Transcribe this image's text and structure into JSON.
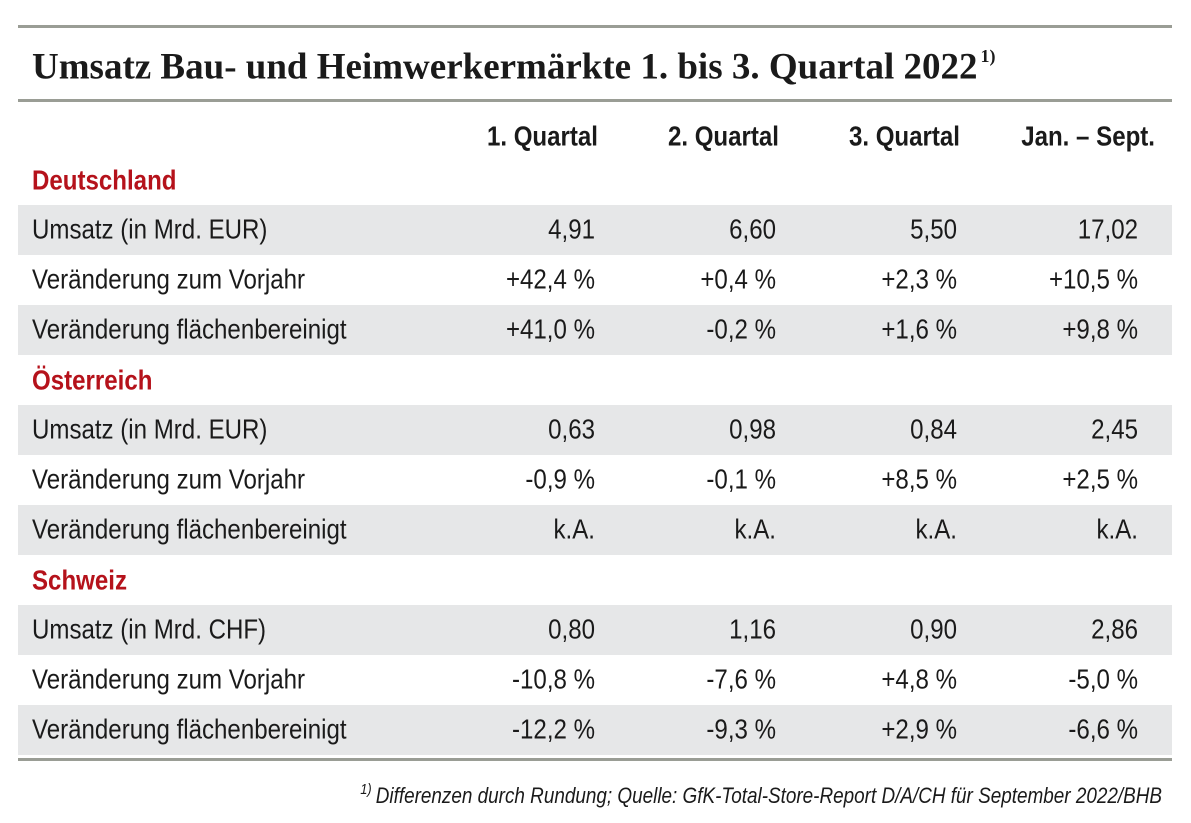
{
  "title": "Umsatz Bau- und Heimwerkermärkte 1. bis 3. Quartal 2022",
  "title_note": "1)",
  "columns": [
    "1. Quartal",
    "2. Quartal",
    "3. Quartal",
    "Jan. – Sept."
  ],
  "sections": [
    {
      "name": "Deutschland",
      "rows": [
        {
          "label": "Umsatz (in Mrd. EUR)",
          "cells": [
            "4,91",
            "6,60",
            "5,50",
            "17,02"
          ]
        },
        {
          "label": "Veränderung zum Vorjahr",
          "cells": [
            "+42,4 %",
            "+0,4 %",
            "+2,3 %",
            "+10,5 %"
          ]
        },
        {
          "label": "Veränderung flächenbereinigt",
          "cells": [
            "+41,0 %",
            "-0,2 %",
            "+1,6 %",
            "+9,8 %"
          ]
        }
      ]
    },
    {
      "name": "Österreich",
      "rows": [
        {
          "label": "Umsatz (in Mrd. EUR)",
          "cells": [
            "0,63",
            "0,98",
            "0,84",
            "2,45"
          ]
        },
        {
          "label": "Veränderung zum Vorjahr",
          "cells": [
            "-0,9 %",
            "-0,1 %",
            "+8,5 %",
            "+2,5 %"
          ]
        },
        {
          "label": "Veränderung flächenbereinigt",
          "cells": [
            "k.A.",
            "k.A.",
            "k.A.",
            "k.A."
          ]
        }
      ]
    },
    {
      "name": "Schweiz",
      "rows": [
        {
          "label": "Umsatz (in Mrd. CHF)",
          "cells": [
            "0,80",
            "1,16",
            "0,90",
            "2,86"
          ]
        },
        {
          "label": "Veränderung zum Vorjahr",
          "cells": [
            "-10,8 %",
            "-7,6 %",
            "+4,8 %",
            "-5,0 %"
          ]
        },
        {
          "label": "Veränderung flächenbereinigt",
          "cells": [
            "-12,2 %",
            "-9,3 %",
            "+2,9 %",
            "-6,6 %"
          ]
        }
      ]
    }
  ],
  "footnote": {
    "marker": "1)",
    "text": "Differenzen durch Rundung; Quelle: GfK-Total-Store-Report D/A/CH für September 2022/BHB"
  }
}
